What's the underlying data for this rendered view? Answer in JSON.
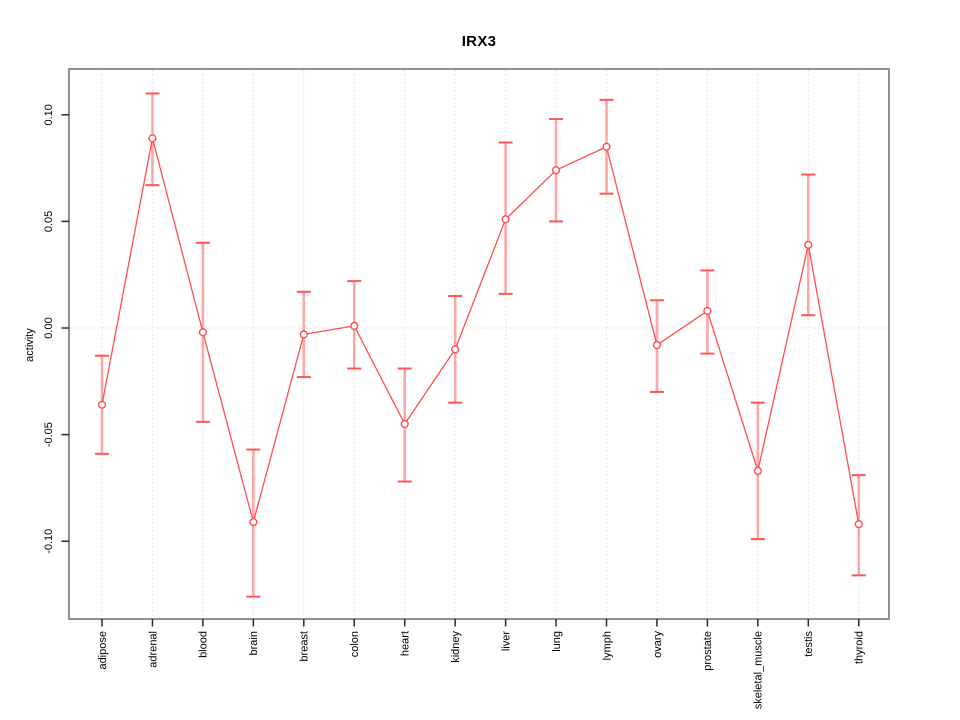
{
  "window": {
    "background": "#ffffff"
  },
  "chart_data": {
    "type": "line",
    "title": "IRX3",
    "ylabel": "activity",
    "legend": "none",
    "grid": "vertical dotted gridline per category plus dotted zero line",
    "marker": "open-circle",
    "error_bars": true,
    "categories": [
      "adipose",
      "adrenal",
      "blood",
      "brain",
      "breast",
      "colon",
      "heart",
      "kidney",
      "liver",
      "lung",
      "lymph",
      "ovary",
      "prostate",
      "skeletal_muscle",
      "testis",
      "thyroid"
    ],
    "series": [
      {
        "name": "IRX3 activity",
        "values": [
          -0.036,
          0.089,
          -0.002,
          -0.091,
          -0.003,
          0.001,
          -0.045,
          -0.01,
          0.051,
          0.074,
          0.085,
          -0.008,
          0.008,
          -0.067,
          0.039,
          -0.092
        ],
        "upper": [
          -0.013,
          0.11,
          0.04,
          -0.057,
          0.017,
          0.022,
          -0.019,
          0.015,
          0.087,
          0.098,
          0.107,
          0.013,
          0.027,
          -0.035,
          0.072,
          -0.069
        ],
        "lower": [
          -0.059,
          0.067,
          -0.044,
          -0.126,
          -0.023,
          -0.019,
          -0.072,
          -0.035,
          0.016,
          0.05,
          0.063,
          -0.03,
          -0.012,
          -0.099,
          0.006,
          -0.116
        ]
      }
    ],
    "yticks": [
      0.1,
      0.05,
      0.0,
      -0.05,
      -0.1
    ],
    "ytick_labels": [
      "0.10",
      "0.05",
      "0.00",
      "-0.05",
      "-0.10"
    ],
    "ylim": [
      -0.136,
      0.121
    ],
    "colors": {
      "line": "#ff4d4d",
      "marker": "#ff4d4d",
      "error_bar": "#ffa6a6",
      "error_cap": "#ff5555",
      "grid": "#dcdcdc",
      "box": "#909090",
      "tick": "#2b2b2b",
      "text": "#000000"
    }
  }
}
